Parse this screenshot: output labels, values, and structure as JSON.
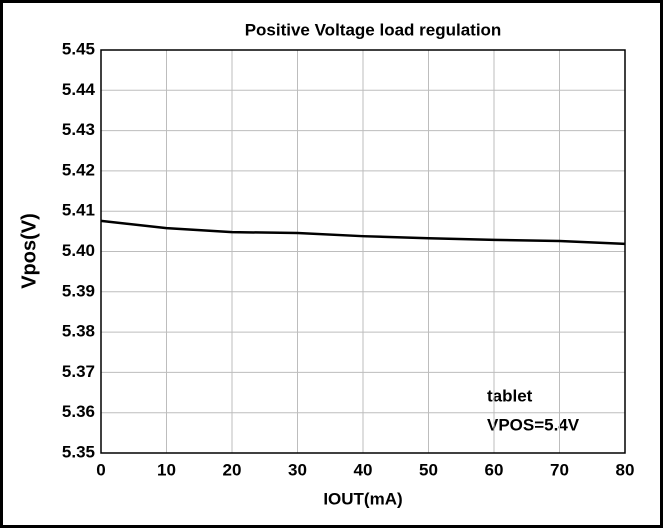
{
  "chart_data": {
    "type": "line",
    "title": "Positive Voltage load regulation",
    "x_label": "IOUT(mA)",
    "y_label": "Vpos(V)",
    "x": [
      0,
      10,
      20,
      30,
      40,
      50,
      60,
      70,
      80
    ],
    "series": [
      {
        "name": "tablet",
        "color": "#000000",
        "values": [
          5.4076,
          5.4058,
          5.4048,
          5.4046,
          5.4038,
          5.4033,
          5.4029,
          5.4026,
          5.4019
        ]
      }
    ],
    "annotations": [
      "tablet",
      "VPOS=5.4V"
    ],
    "xlim": [
      0,
      80
    ],
    "xticks": [
      0,
      10,
      20,
      30,
      40,
      50,
      60,
      70,
      80
    ],
    "ylim": [
      5.35,
      5.45
    ],
    "yticks": [
      5.35,
      5.36,
      5.37,
      5.38,
      5.39,
      {
        "value": 5.4,
        "label": "5.40"
      },
      5.41,
      5.42,
      5.43,
      5.44,
      5.45
    ],
    "grid": true
  }
}
